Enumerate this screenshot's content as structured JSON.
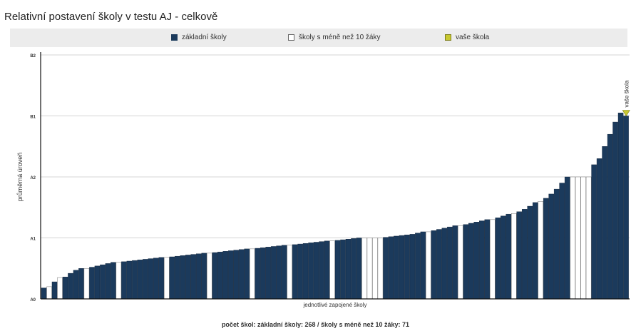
{
  "chart_data": {
    "type": "bar",
    "title": "Relativní postavení školy v testu AJ - celkově",
    "xlabel": "jednotlivé zapojené školy",
    "ylabel": "průměrná úroveň",
    "y_ticks": [
      {
        "label": "A0",
        "value": 0
      },
      {
        "label": "A1",
        "value": 1
      },
      {
        "label": "A2",
        "value": 2
      },
      {
        "label": "B1",
        "value": 3
      },
      {
        "label": "B2",
        "value": 4
      }
    ],
    "ylim": [
      0,
      4
    ],
    "grid": true,
    "legend_position": "top",
    "legend": [
      {
        "label": "základní školy",
        "color": "#1b3a5c"
      },
      {
        "label": "školy s méně než 10 žáky",
        "color": "#ffffff"
      },
      {
        "label": "vaše škola",
        "color": "#c8c830"
      }
    ],
    "highlight_label": "vaše škola",
    "series": [
      {
        "name": "základní školy",
        "count": 268,
        "color": "#1b3a5c",
        "values": [
          0.18,
          0.28,
          0.36,
          0.42,
          0.47,
          0.5,
          0.52,
          0.54,
          0.56,
          0.58,
          0.6,
          0.61,
          0.62,
          0.63,
          0.64,
          0.65,
          0.66,
          0.67,
          0.68,
          0.69,
          0.7,
          0.71,
          0.72,
          0.73,
          0.74,
          0.75,
          0.76,
          0.77,
          0.78,
          0.79,
          0.8,
          0.81,
          0.82,
          0.83,
          0.84,
          0.85,
          0.86,
          0.87,
          0.88,
          0.89,
          0.9,
          0.91,
          0.92,
          0.93,
          0.94,
          0.95,
          0.96,
          0.97,
          0.98,
          0.99,
          1.0,
          1.01,
          1.02,
          1.03,
          1.04,
          1.05,
          1.06,
          1.08,
          1.1,
          1.12,
          1.14,
          1.16,
          1.18,
          1.2,
          1.22,
          1.24,
          1.26,
          1.28,
          1.3,
          1.33,
          1.36,
          1.39,
          1.43,
          1.47,
          1.52,
          1.58,
          1.65,
          1.72,
          1.8,
          1.9,
          2.0,
          2.2,
          2.3,
          2.5,
          2.7,
          2.9,
          3.05
        ]
      },
      {
        "name": "školy s méně než 10 žáky",
        "count": 71,
        "color": "#ffffff",
        "values": [
          0.2,
          0.35,
          0.5,
          0.6,
          0.68,
          0.75,
          0.82,
          0.88,
          0.95,
          1.0,
          1.0,
          1.0,
          1.0,
          1.1,
          1.2,
          1.3,
          1.4,
          1.6,
          2.0,
          2.0,
          2.0,
          2.0
        ]
      }
    ],
    "your_school": {
      "label": "vaše škola",
      "value": 3.0
    }
  },
  "footer": "počet škol: základní školy: 268 / školy s méně než 10 žáky: 71"
}
